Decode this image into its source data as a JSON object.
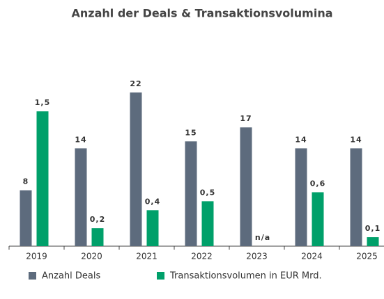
{
  "chart_data": {
    "type": "bar",
    "title": "Anzahl der Deals & Transaktionsvolumina",
    "categories": [
      "2019",
      "2020",
      "2021",
      "2022",
      "2023",
      "2024",
      "2025"
    ],
    "series": [
      {
        "name": "Anzahl Deals",
        "color": "#5d6b7d",
        "values": [
          8,
          14,
          22,
          15,
          17,
          14,
          14
        ]
      },
      {
        "name": "Transaktionsvolumen in EUR Mrd.",
        "color": "#00a06a",
        "axis": "y2",
        "values": [
          1.5,
          0.2,
          0.4,
          0.5,
          null,
          0.6,
          0.1
        ],
        "value_labels": [
          "1,5",
          "0,2",
          "0,4",
          "0,5",
          "n/a",
          "0,6",
          "0,1"
        ]
      }
    ],
    "ylim": [
      0,
      22
    ],
    "y2lim": [
      0,
      1.71
    ],
    "grid": false,
    "legend": "bottom"
  }
}
